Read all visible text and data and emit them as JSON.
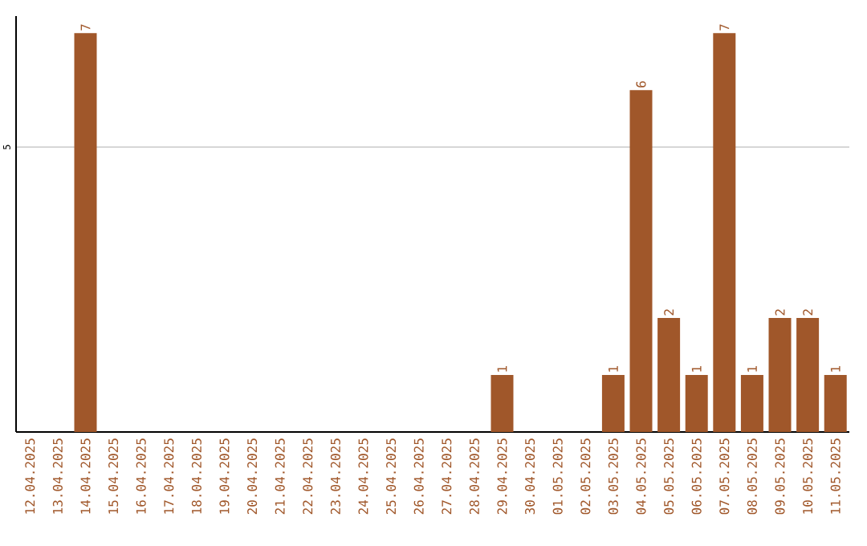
{
  "chart_data": {
    "type": "bar",
    "categories": [
      "12.04.2025",
      "13.04.2025",
      "14.04.2025",
      "15.04.2025",
      "16.04.2025",
      "17.04.2025",
      "18.04.2025",
      "19.04.2025",
      "20.04.2025",
      "21.04.2025",
      "22.04.2025",
      "23.04.2025",
      "24.04.2025",
      "25.04.2025",
      "26.04.2025",
      "27.04.2025",
      "28.04.2025",
      "29.04.2025",
      "30.04.2025",
      "01.05.2025",
      "02.05.2025",
      "03.05.2025",
      "04.05.2025",
      "05.05.2025",
      "06.05.2025",
      "07.05.2025",
      "08.05.2025",
      "09.05.2025",
      "10.05.2025",
      "11.05.2025"
    ],
    "values": [
      0,
      0,
      7,
      0,
      0,
      0,
      0,
      0,
      0,
      0,
      0,
      0,
      0,
      0,
      0,
      0,
      0,
      1,
      0,
      0,
      0,
      1,
      6,
      2,
      1,
      7,
      1,
      2,
      2,
      1
    ],
    "value_labels": [
      null,
      null,
      "7",
      null,
      null,
      null,
      null,
      null,
      null,
      null,
      null,
      null,
      null,
      null,
      null,
      null,
      null,
      "1",
      null,
      null,
      null,
      "1",
      "6",
      "2",
      "1",
      "7",
      "1",
      "2",
      "2",
      "1"
    ],
    "color": "#a0572a",
    "ylim": [
      0,
      7.3
    ],
    "yticks": [
      5
    ],
    "grid": "y"
  }
}
